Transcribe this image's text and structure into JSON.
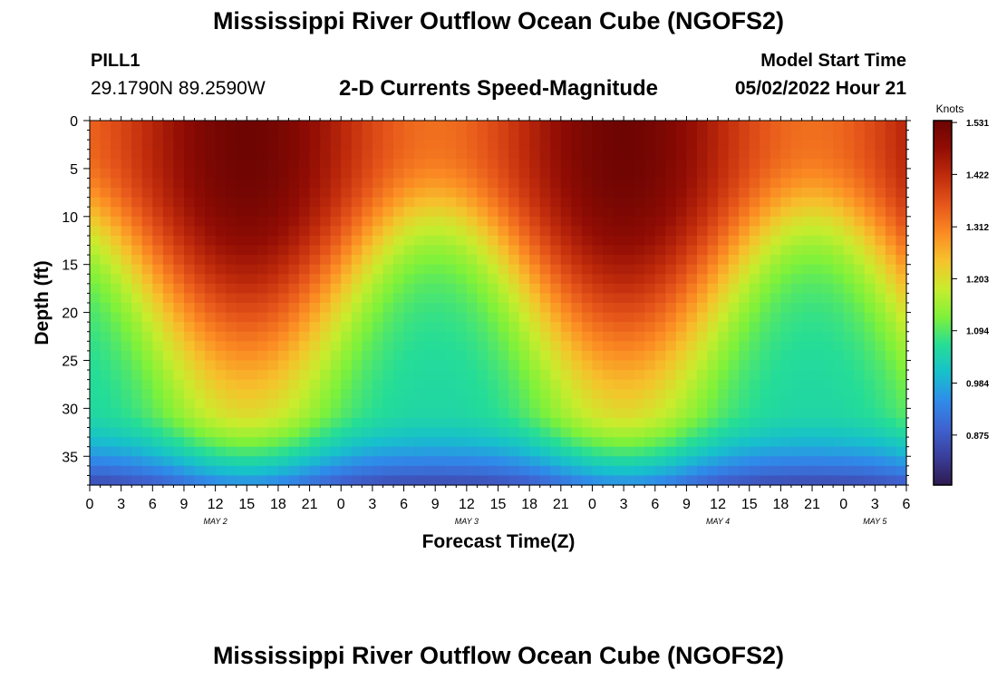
{
  "header": {
    "title": "Mississippi River Outflow Ocean Cube (NGOFS2)",
    "station": "PILL1",
    "coords": "29.1790N  89.2590W",
    "subtitle": "2-D Currents Speed-Magnitude",
    "model_start_label": "Model Start Time",
    "model_start_value": "05/02/2022 Hour 21"
  },
  "footer": {
    "title": "Mississippi River Outflow Ocean Cube (NGOFS2)"
  },
  "chart_data": {
    "type": "heatmap",
    "title": "2-D Currents Speed-Magnitude",
    "xlabel": "Forecast Time(Z)",
    "ylabel": "Depth (ft)",
    "x_tick_labels": [
      "0",
      "3",
      "6",
      "9",
      "12",
      "15",
      "18",
      "21",
      "0",
      "3",
      "6",
      "9",
      "12",
      "15",
      "18",
      "21",
      "0",
      "3",
      "6",
      "9",
      "12",
      "15",
      "18",
      "21",
      "0",
      "3",
      "6"
    ],
    "date_labels": [
      {
        "label": "MAY 2",
        "hour_index": 12
      },
      {
        "label": "MAY 3",
        "hour_index": 36
      },
      {
        "label": "MAY 4",
        "hour_index": 60
      },
      {
        "label": "MAY 5",
        "hour_index": 75
      }
    ],
    "x_range_hours": [
      0,
      78
    ],
    "y_tick_labels": [
      "0",
      "5",
      "10",
      "15",
      "20",
      "25",
      "30",
      "35"
    ],
    "y_range_ft": [
      0,
      38
    ],
    "colorbar": {
      "title": "Knots",
      "tick_labels": [
        "1.531",
        "1.422",
        "1.312",
        "1.203",
        "1.094",
        "0.984",
        "0.875"
      ],
      "range": [
        0.77,
        1.535
      ],
      "colors": [
        "#2e1a4f",
        "#3a3e9a",
        "#3f62cf",
        "#2f8bea",
        "#17c0cc",
        "#25dd97",
        "#7ef13a",
        "#c9ec2d",
        "#f6c22c",
        "#fb8a23",
        "#e6561a",
        "#c12c0c",
        "#920d04",
        "#6b0402"
      ]
    },
    "model": {
      "surface_peak_speeds": [
        1.53,
        1.53
      ],
      "surface_peak_hours": [
        15,
        51
      ],
      "surface_trough_hours": [
        35,
        71
      ],
      "surface_trough_speed": 1.33,
      "bottom_speed": 0.77
    }
  }
}
